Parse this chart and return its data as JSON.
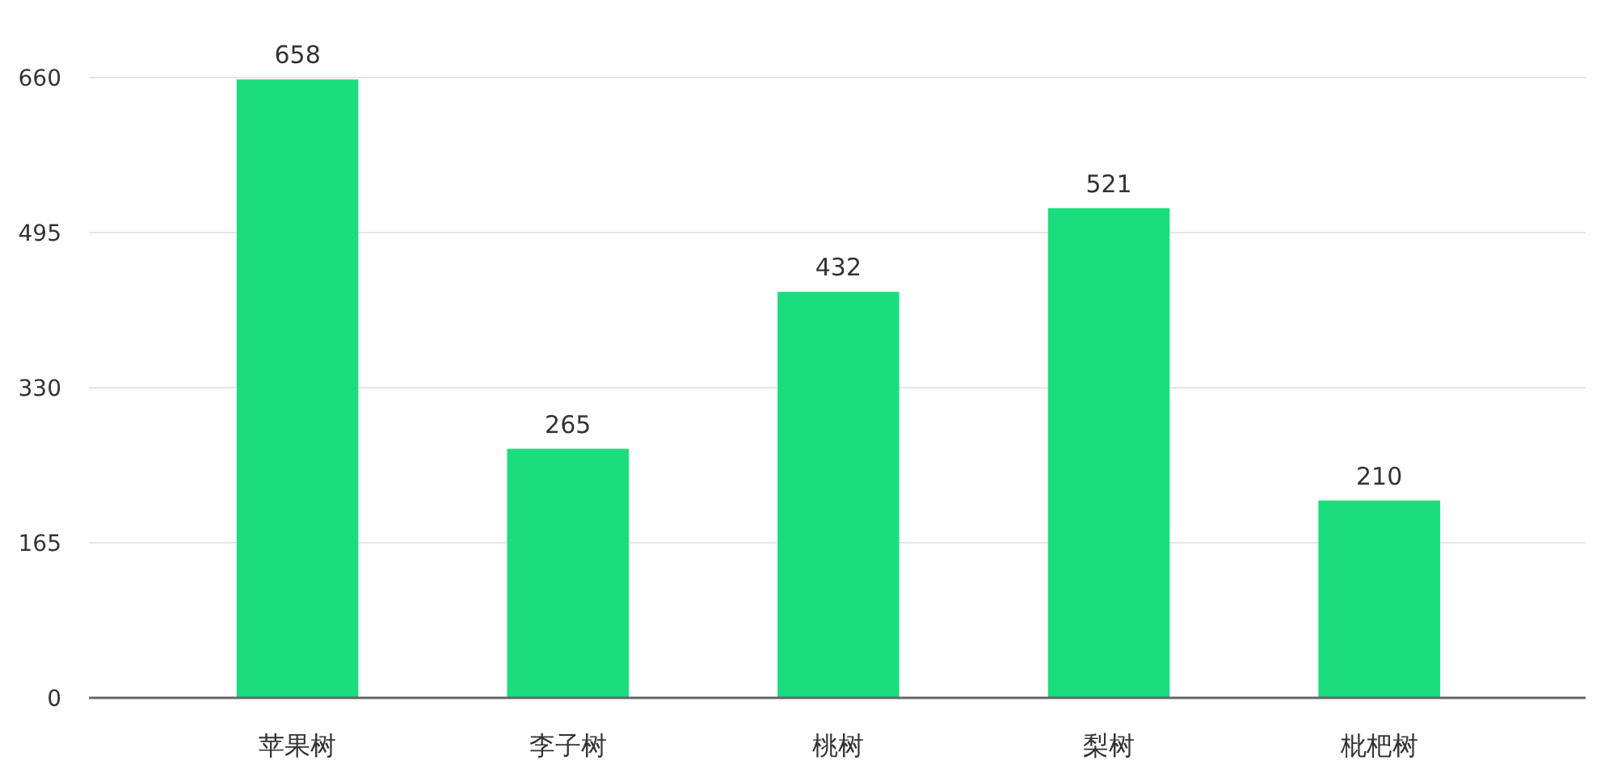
{
  "chart_data": {
    "type": "bar",
    "categories": [
      "苹果树",
      "李子树",
      "桃树",
      "梨树",
      "枇杷树"
    ],
    "values": [
      658,
      265,
      432,
      521,
      210
    ],
    "color": "#1bdd7e",
    "ylim": [
      0,
      660
    ],
    "yticks": [
      0,
      165,
      330,
      495,
      660
    ],
    "grid": "y",
    "data_labels": true
  }
}
